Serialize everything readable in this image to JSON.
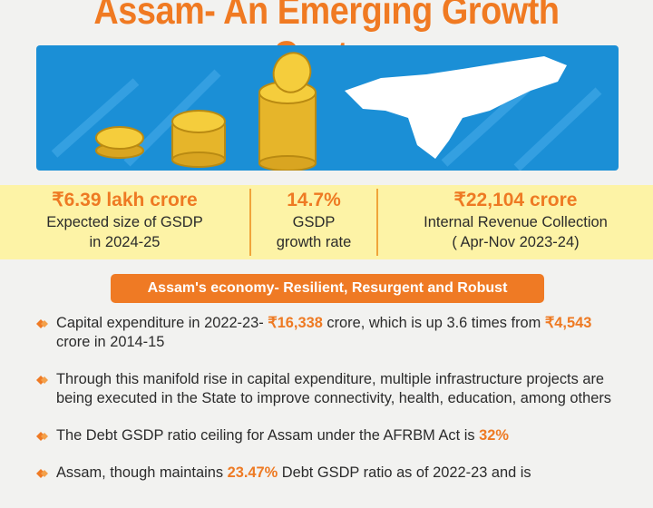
{
  "header": {
    "title": "Assam- An Emerging Growth Centre"
  },
  "stats": [
    {
      "value": "₹6.39 lakh crore",
      "label": [
        "Expected size of GSDP",
        "in 2024-25"
      ]
    },
    {
      "value": "14.7%",
      "label": [
        "GSDP",
        "growth rate"
      ]
    },
    {
      "value": "₹22,104 crore",
      "label": [
        "Internal Revenue Collection",
        "( Apr-Nov 2023-24)"
      ]
    }
  ],
  "section": {
    "title": "Assam's economy- Resilient, Resurgent and Robust"
  },
  "bullets": [
    [
      {
        "text": "Capital expenditure in 2022-23- "
      },
      {
        "text": "₹16,338",
        "highlight": true
      },
      {
        "text": " crore, which is up 3.6 times from "
      },
      {
        "text": "₹4,543",
        "highlight": true
      },
      {
        "text": " crore in 2014-15"
      }
    ],
    [
      {
        "text": "Through this manifold rise in capital expenditure, multiple infrastructure projects are being executed in the State to improve connectivity, health, education, among others"
      }
    ],
    [
      {
        "text": "The Debt GSDP ratio ceiling for Assam under the AFRBM Act is "
      },
      {
        "text": "32%",
        "highlight": true
      }
    ],
    [
      {
        "text": "Assam, though maintains "
      },
      {
        "text": "23.47%",
        "highlight": true
      },
      {
        "text": " Debt GSDP ratio as of 2022-23 and is"
      }
    ]
  ]
}
